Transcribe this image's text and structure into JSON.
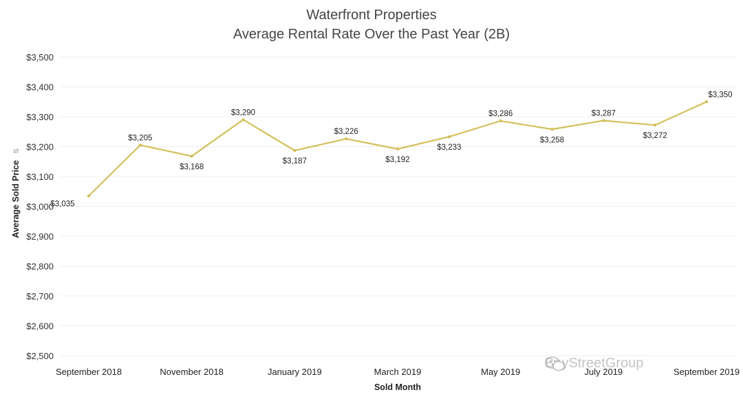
{
  "chart_data": {
    "type": "line",
    "title": "Waterfront Properties",
    "subtitle": "Average Rental Rate Over the Past Year (2B)",
    "xlabel": "Sold Month",
    "ylabel": "Average Sold Price",
    "ylim": [
      2500,
      3500
    ],
    "yticks": [
      2500,
      2600,
      2700,
      2800,
      2900,
      3000,
      3100,
      3200,
      3300,
      3400,
      3500
    ],
    "ytick_labels": [
      "$2,500",
      "$2,600",
      "$2,700",
      "$2,800",
      "$2,900",
      "$3,000",
      "$3,100",
      "$3,200",
      "$3,300",
      "$3,400",
      "$3,500"
    ],
    "x": [
      "September 2018",
      "October 2018",
      "November 2018",
      "December 2018",
      "January 2019",
      "February 2019",
      "March 2019",
      "April 2019",
      "May 2019",
      "June 2019",
      "July 2019",
      "August 2019",
      "September 2019"
    ],
    "xtick_labels": [
      {
        "index": 0,
        "label": "September 2018"
      },
      {
        "index": 2,
        "label": "November 2018"
      },
      {
        "index": 4,
        "label": "January 2019"
      },
      {
        "index": 6,
        "label": "March 2019"
      },
      {
        "index": 8,
        "label": "May 2019"
      },
      {
        "index": 10,
        "label": "July 2019"
      },
      {
        "index": 12,
        "label": "September 2019"
      }
    ],
    "series": [
      {
        "name": "Average Sold Price",
        "values": [
          3035,
          3205,
          3168,
          3290,
          3187,
          3226,
          3192,
          3233,
          3286,
          3258,
          3287,
          3272,
          3350
        ],
        "labels": [
          "$3,035",
          "$3,205",
          "$3,168",
          "$3,290",
          "$3,187",
          "$3,226",
          "$3,192",
          "$3,233",
          "$3,286",
          "$3,258",
          "$3,287",
          "$3,272",
          "$3,350"
        ],
        "label_pos": [
          "below",
          "above",
          "below",
          "above",
          "below",
          "above",
          "below",
          "below",
          "above",
          "below",
          "above",
          "below",
          "above"
        ]
      }
    ],
    "line_color": "#d4bf5b",
    "grid": true
  },
  "watermark": "BayStreetGroup",
  "ylabel_sort_icon": "sort-icon"
}
